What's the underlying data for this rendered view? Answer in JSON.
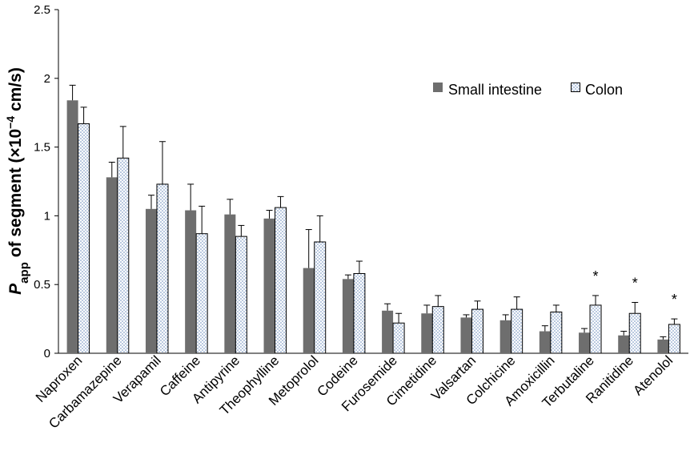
{
  "chart_data": {
    "type": "bar",
    "ylabel": {
      "main": "P",
      "sub": "app",
      "rest": " of segment (×10",
      "sup": "−4",
      "unit": " cm/s)"
    },
    "ylim": [
      0,
      2.5
    ],
    "yticks": [
      "0",
      "0.5",
      "1",
      "1.5",
      "2",
      "2.5"
    ],
    "ytick_values": [
      0,
      0.5,
      1,
      1.5,
      2,
      2.5
    ],
    "legend_position": "top-right",
    "grid": false,
    "categories": [
      "Naproxen",
      "Carbamazepine",
      "Verapamil",
      "Caffeine",
      "Antipyrine",
      "Theophylline",
      "Metoprolol",
      "Codeine",
      "Furosemide",
      "Cimetidine",
      "Valsartan",
      "Colchicine",
      "Amoxicillin",
      "Terbutaline",
      "Ranitidine",
      "Atenolol"
    ],
    "series": [
      {
        "name": "Small intestine",
        "color": "#6e6e6e",
        "pattern": "solid",
        "values": [
          1.84,
          1.28,
          1.05,
          1.04,
          1.01,
          0.98,
          0.62,
          0.54,
          0.31,
          0.29,
          0.26,
          0.24,
          0.16,
          0.15,
          0.13,
          0.1
        ],
        "errors": [
          0.11,
          0.11,
          0.1,
          0.19,
          0.11,
          0.06,
          0.28,
          0.03,
          0.05,
          0.06,
          0.02,
          0.04,
          0.04,
          0.03,
          0.03,
          0.02
        ]
      },
      {
        "name": "Colon",
        "color": "#dfe8f4",
        "pattern": "dotted",
        "values": [
          1.67,
          1.42,
          1.23,
          0.87,
          0.85,
          1.06,
          0.81,
          0.58,
          0.22,
          0.34,
          0.32,
          0.32,
          0.3,
          0.35,
          0.29,
          0.21
        ],
        "errors": [
          0.12,
          0.23,
          0.31,
          0.2,
          0.08,
          0.08,
          0.19,
          0.09,
          0.07,
          0.08,
          0.06,
          0.09,
          0.05,
          0.07,
          0.08,
          0.04
        ]
      }
    ],
    "annotations": [
      {
        "category": "Terbutaline",
        "text": "*"
      },
      {
        "category": "Ranitidine",
        "text": "*"
      },
      {
        "category": "Atenolol",
        "text": "*"
      }
    ]
  }
}
